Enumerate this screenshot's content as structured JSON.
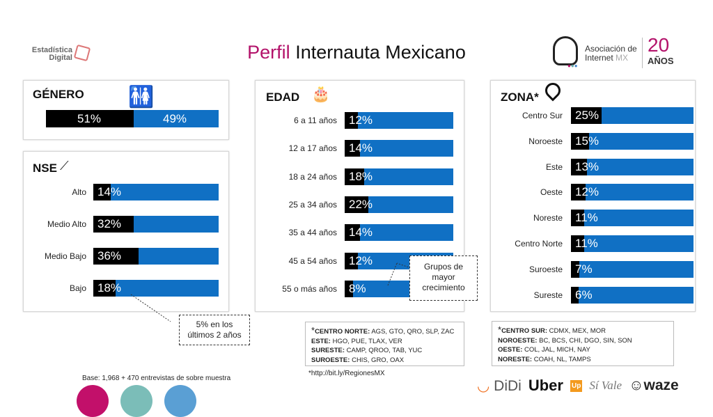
{
  "title_accent": "Perfil",
  "title_rest": "Internauta Mexicano",
  "logo_left": {
    "line1": "Estadística",
    "line2": "Digital"
  },
  "logo_right": {
    "line1": "Asociación de",
    "line2": "Internet",
    "line2b": "MX",
    "years": "20",
    "years_label": "AÑOS"
  },
  "colors": {
    "accent": "#b3126a",
    "bar": "#1070c4",
    "fill": "#000000"
  },
  "genero": {
    "title": "GÉNERO",
    "men": "51%",
    "women": "49%",
    "men_value": 51
  },
  "nse": {
    "title": "NSE",
    "rows": [
      {
        "label": "Alto",
        "value": 14,
        "text": "14%"
      },
      {
        "label": "Medio Alto",
        "value": 32,
        "text": "32%"
      },
      {
        "label": "Medio Bajo",
        "value": 36,
        "text": "36%"
      },
      {
        "label": "Bajo",
        "value": 18,
        "text": "18%"
      }
    ]
  },
  "edad": {
    "title": "EDAD",
    "rows": [
      {
        "label": "6 a 11 años",
        "value": 12,
        "text": "12%"
      },
      {
        "label": "12 a 17 años",
        "value": 14,
        "text": "14%"
      },
      {
        "label": "18 a 24 años",
        "value": 18,
        "text": "18%"
      },
      {
        "label": "25 a 34 años",
        "value": 22,
        "text": "22%"
      },
      {
        "label": "35 a 44 años",
        "value": 14,
        "text": "14%"
      },
      {
        "label": "45 a 54 años",
        "value": 12,
        "text": "12%"
      },
      {
        "label": "55 o más años",
        "value": 8,
        "text": "8%"
      }
    ]
  },
  "zona": {
    "title": "ZONA*",
    "rows": [
      {
        "label": "Centro Sur",
        "value": 25,
        "text": "25%"
      },
      {
        "label": "Noroeste",
        "value": 15,
        "text": "15%"
      },
      {
        "label": "Este",
        "value": 13,
        "text": "13%"
      },
      {
        "label": "Oeste",
        "value": 12,
        "text": "12%"
      },
      {
        "label": "Noreste",
        "value": 11,
        "text": "11%"
      },
      {
        "label": "Centro Norte",
        "value": 11,
        "text": "11%"
      },
      {
        "label": "Suroeste",
        "value": 7,
        "text": "7%"
      },
      {
        "label": "Sureste",
        "value": 6,
        "text": "6%"
      }
    ]
  },
  "callouts": {
    "growth": "Grupos de mayor crecimiento",
    "nse": "5% en los últimos 2 años"
  },
  "notes_left": [
    {
      "k": "CENTRO NORTE:",
      "v": " AGS, GTO, QRO, SLP, ZAC"
    },
    {
      "k": "ESTE:",
      "v": " HGO, PUE, TLAX, VER"
    },
    {
      "k": "SURESTE:",
      "v": " CAMP, QROO, TAB, YUC"
    },
    {
      "k": "SUROESTE:",
      "v": " CHIS, GRO, OAX"
    }
  ],
  "notes_right": [
    {
      "k": "CENTRO SUR:",
      "v": " CDMX, MEX, MOR"
    },
    {
      "k": "NOROESTE:",
      "v": " BC, BCS, CHI, DGO, SIN, SON"
    },
    {
      "k": "OESTE:",
      "v": " COL, JAL, MICH, NAY"
    },
    {
      "k": "NORESTE:",
      "v": " COAH, NL, TAMPS"
    }
  ],
  "link": "http://bit.ly/RegionesMX",
  "base": "Base: 1,968 + 470 entrevistas de sobre muestra",
  "sponsors": [
    "DiDi",
    "Uber",
    "Up",
    "Sí Vale",
    "waze"
  ]
}
